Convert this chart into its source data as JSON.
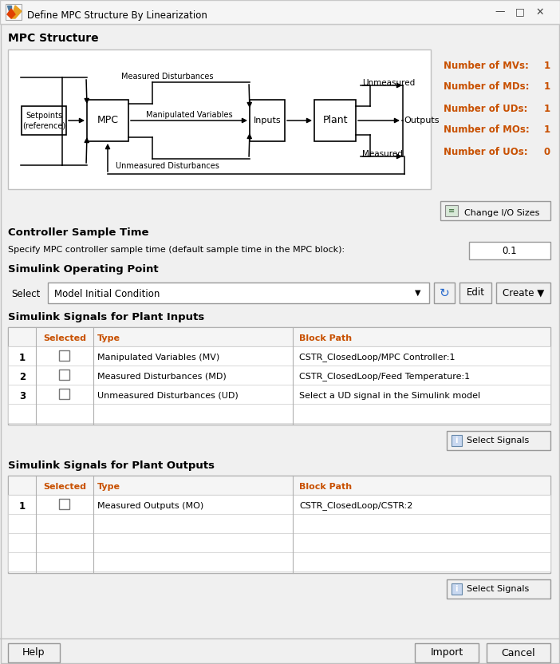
{
  "title": "Define MPC Structure By Linearization",
  "bg_color": "#f0f0f0",
  "white": "#ffffff",
  "orange_color": "#c85000",
  "table_header_color": "#c85000",
  "number_panel_labels": [
    "Number of MVs:",
    "Number of MDs:",
    "Number of UDs:",
    "Number of MOs:",
    "Number of UOs:"
  ],
  "number_panel_values": [
    "1",
    "1",
    "1",
    "1",
    "0"
  ],
  "controller_sample_time_label": "Controller Sample Time",
  "sample_time_desc": "Specify MPC controller sample time (default sample time in the MPC block):",
  "sample_time_value": "0.1",
  "operating_point_label": "Simulink Operating Point",
  "select_label": "Select",
  "dropdown_text": "Model Initial Condition",
  "plant_inputs_label": "Simulink Signals for Plant Inputs",
  "plant_outputs_label": "Simulink Signals for Plant Outputs",
  "table_col_headers": [
    "Selected",
    "Type",
    "Block Path"
  ],
  "inputs_rows": [
    [
      "1",
      "Manipulated Variables (MV)",
      "CSTR_ClosedLoop/MPC Controller:1"
    ],
    [
      "2",
      "Measured Disturbances (MD)",
      "CSTR_ClosedLoop/Feed Temperature:1"
    ],
    [
      "3",
      "Unmeasured Disturbances (UD)",
      "Select a UD signal in the Simulink model"
    ]
  ],
  "outputs_rows": [
    [
      "1",
      "Measured Outputs (MO)",
      "CSTR_ClosedLoop/CSTR:2"
    ]
  ]
}
